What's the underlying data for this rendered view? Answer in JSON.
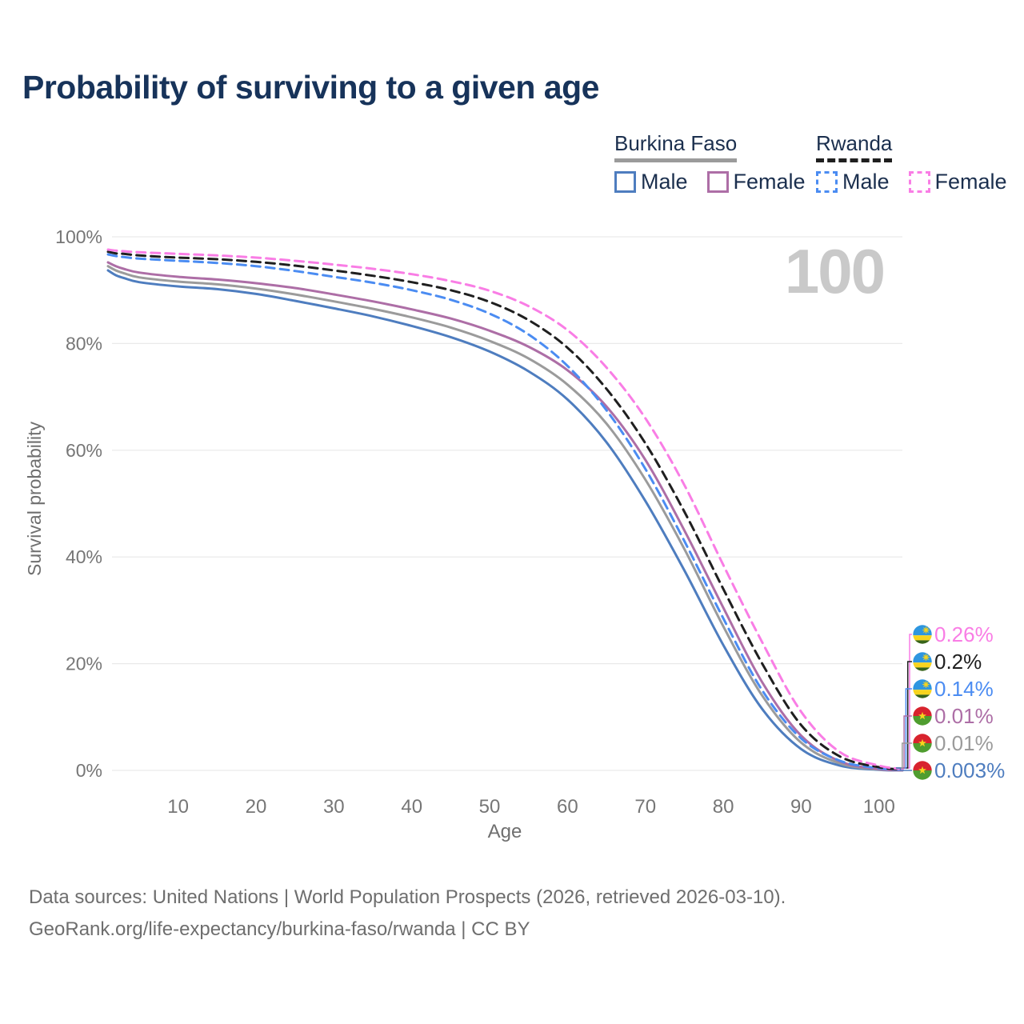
{
  "title": "Probability of surviving to a given age",
  "watermark": "100",
  "legend": {
    "groups": [
      {
        "name": "Burkina Faso",
        "line_style": "solid",
        "underline_color": "#9b9b9b",
        "items": [
          {
            "label": "Male",
            "color": "#4e7dbf",
            "dashed": false
          },
          {
            "label": "Female",
            "color": "#ad6ea6",
            "dashed": false
          }
        ]
      },
      {
        "name": "Rwanda",
        "line_style": "dashed",
        "underline_color": "#1f1f1f",
        "items": [
          {
            "label": "Male",
            "color": "#4b8cf2",
            "dashed": true
          },
          {
            "label": "Female",
            "color": "#f97de5",
            "dashed": true
          }
        ]
      }
    ]
  },
  "end_labels": [
    {
      "value": "0.26%",
      "color": "#f97de5",
      "flag": "rwanda"
    },
    {
      "value": "0.2%",
      "color": "#1f1f1f",
      "flag": "rwanda"
    },
    {
      "value": "0.14%",
      "color": "#4b8cf2",
      "flag": "rwanda"
    },
    {
      "value": "0.01%",
      "color": "#ad6ea6",
      "flag": "burkina-faso"
    },
    {
      "value": "0.01%",
      "color": "#9b9b9b",
      "flag": "burkina-faso"
    },
    {
      "value": "0.003%",
      "color": "#4e7dbf",
      "flag": "burkina-faso"
    }
  ],
  "footer": {
    "line1": "Data sources: United Nations | World Population Prospects (2026, retrieved 2026-03-10).",
    "line2": "GeoRank.org/life-expectancy/burkina-faso/rwanda | CC BY"
  },
  "chart_data": {
    "type": "line",
    "title": "Probability of surviving to a given age",
    "xlabel": "Age",
    "ylabel": "Survival probability",
    "xlim": [
      1,
      103
    ],
    "ylim": [
      0,
      100
    ],
    "grid": "horizontal",
    "legend_position": "top-right",
    "x_ticks": [
      {
        "label": "10",
        "value": 10
      },
      {
        "label": "20",
        "value": 20
      },
      {
        "label": "30",
        "value": 30
      },
      {
        "label": "40",
        "value": 40
      },
      {
        "label": "50",
        "value": 50
      },
      {
        "label": "60",
        "value": 60
      },
      {
        "label": "70",
        "value": 70
      },
      {
        "label": "80",
        "value": 80
      },
      {
        "label": "90",
        "value": 90
      },
      {
        "label": "100",
        "value": 100
      }
    ],
    "y_ticks": [
      {
        "label": "0%",
        "value": 0
      },
      {
        "label": "20%",
        "value": 20
      },
      {
        "label": "40%",
        "value": 40
      },
      {
        "label": "60%",
        "value": 60
      },
      {
        "label": "80%",
        "value": 80
      },
      {
        "label": "100%",
        "value": 100
      }
    ],
    "unit": "% survival probability",
    "series": [
      {
        "id": "burkina-faso-male",
        "name": "Burkina Faso Male",
        "color": "#4e7dbf",
        "dashed": false,
        "end_value_label": "0.003%",
        "points": [
          [
            1,
            93.7
          ],
          [
            2,
            92.8
          ],
          [
            3,
            92.3
          ],
          [
            5,
            91.5
          ],
          [
            10,
            90.7
          ],
          [
            15,
            90.2
          ],
          [
            20,
            89.3
          ],
          [
            25,
            88.0
          ],
          [
            30,
            86.6
          ],
          [
            35,
            85.1
          ],
          [
            40,
            83.3
          ],
          [
            45,
            81.2
          ],
          [
            50,
            78.5
          ],
          [
            55,
            74.8
          ],
          [
            60,
            69.5
          ],
          [
            65,
            61.5
          ],
          [
            70,
            50.5
          ],
          [
            75,
            37.5
          ],
          [
            80,
            23.5
          ],
          [
            85,
            11.5
          ],
          [
            90,
            4.0
          ],
          [
            95,
            0.9
          ],
          [
            100,
            0.12
          ],
          [
            103,
            0.003
          ]
        ]
      },
      {
        "id": "burkina-faso-total",
        "name": "Burkina Faso (both sexes)",
        "color": "#9b9b9b",
        "dashed": false,
        "end_value_label": "0.01%",
        "points": [
          [
            1,
            94.5
          ],
          [
            2,
            93.7
          ],
          [
            3,
            93.2
          ],
          [
            5,
            92.4
          ],
          [
            10,
            91.6
          ],
          [
            15,
            91.1
          ],
          [
            20,
            90.3
          ],
          [
            25,
            89.2
          ],
          [
            30,
            87.9
          ],
          [
            35,
            86.5
          ],
          [
            40,
            84.9
          ],
          [
            45,
            83.0
          ],
          [
            50,
            80.5
          ],
          [
            55,
            77.2
          ],
          [
            60,
            72.3
          ],
          [
            65,
            65.0
          ],
          [
            70,
            54.5
          ],
          [
            75,
            41.5
          ],
          [
            80,
            27.0
          ],
          [
            85,
            14.0
          ],
          [
            90,
            5.2
          ],
          [
            95,
            1.3
          ],
          [
            100,
            0.18
          ],
          [
            103,
            0.01
          ]
        ]
      },
      {
        "id": "burkina-faso-female",
        "name": "Burkina Faso Female",
        "color": "#ad6ea6",
        "dashed": false,
        "end_value_label": "0.01%",
        "points": [
          [
            1,
            95.2
          ],
          [
            2,
            94.5
          ],
          [
            3,
            94.0
          ],
          [
            5,
            93.3
          ],
          [
            10,
            92.5
          ],
          [
            15,
            92.0
          ],
          [
            20,
            91.3
          ],
          [
            25,
            90.4
          ],
          [
            30,
            89.2
          ],
          [
            35,
            87.9
          ],
          [
            40,
            86.4
          ],
          [
            45,
            84.7
          ],
          [
            50,
            82.4
          ],
          [
            55,
            79.4
          ],
          [
            60,
            75.0
          ],
          [
            65,
            68.2
          ],
          [
            70,
            58.2
          ],
          [
            75,
            45.0
          ],
          [
            80,
            30.5
          ],
          [
            85,
            16.5
          ],
          [
            90,
            6.5
          ],
          [
            95,
            1.7
          ],
          [
            100,
            0.25
          ],
          [
            103,
            0.01
          ]
        ]
      },
      {
        "id": "rwanda-male",
        "name": "Rwanda Male",
        "color": "#4b8cf2",
        "dashed": true,
        "end_value_label": "0.14%",
        "points": [
          [
            1,
            96.7
          ],
          [
            2,
            96.4
          ],
          [
            3,
            96.2
          ],
          [
            5,
            95.9
          ],
          [
            10,
            95.5
          ],
          [
            15,
            95.1
          ],
          [
            20,
            94.5
          ],
          [
            25,
            93.6
          ],
          [
            30,
            92.5
          ],
          [
            35,
            91.4
          ],
          [
            40,
            90.0
          ],
          [
            45,
            88.2
          ],
          [
            50,
            85.6
          ],
          [
            55,
            81.7
          ],
          [
            60,
            75.8
          ],
          [
            65,
            67.5
          ],
          [
            70,
            56.5
          ],
          [
            75,
            43.0
          ],
          [
            80,
            28.5
          ],
          [
            85,
            15.0
          ],
          [
            90,
            6.0
          ],
          [
            95,
            1.8
          ],
          [
            100,
            0.4
          ],
          [
            103,
            0.14
          ]
        ]
      },
      {
        "id": "rwanda-total",
        "name": "Rwanda (both sexes)",
        "color": "#1f1f1f",
        "dashed": true,
        "end_value_label": "0.2%",
        "points": [
          [
            1,
            97.2
          ],
          [
            2,
            96.9
          ],
          [
            3,
            96.8
          ],
          [
            5,
            96.5
          ],
          [
            10,
            96.1
          ],
          [
            15,
            95.8
          ],
          [
            20,
            95.3
          ],
          [
            25,
            94.6
          ],
          [
            30,
            93.7
          ],
          [
            35,
            92.7
          ],
          [
            40,
            91.5
          ],
          [
            45,
            90.0
          ],
          [
            50,
            87.8
          ],
          [
            55,
            84.4
          ],
          [
            60,
            79.2
          ],
          [
            65,
            71.5
          ],
          [
            70,
            61.3
          ],
          [
            75,
            48.5
          ],
          [
            80,
            34.0
          ],
          [
            85,
            20.0
          ],
          [
            90,
            8.5
          ],
          [
            95,
            2.6
          ],
          [
            100,
            0.6
          ],
          [
            103,
            0.2
          ]
        ]
      },
      {
        "id": "rwanda-female",
        "name": "Rwanda Female",
        "color": "#f97de5",
        "dashed": true,
        "end_value_label": "0.26%",
        "points": [
          [
            1,
            97.6
          ],
          [
            2,
            97.4
          ],
          [
            3,
            97.3
          ],
          [
            5,
            97.1
          ],
          [
            10,
            96.8
          ],
          [
            15,
            96.5
          ],
          [
            20,
            96.1
          ],
          [
            25,
            95.5
          ],
          [
            30,
            94.8
          ],
          [
            35,
            94.0
          ],
          [
            40,
            93.0
          ],
          [
            45,
            91.7
          ],
          [
            50,
            89.9
          ],
          [
            55,
            87.0
          ],
          [
            60,
            82.5
          ],
          [
            65,
            75.5
          ],
          [
            70,
            66.0
          ],
          [
            75,
            53.5
          ],
          [
            80,
            38.5
          ],
          [
            85,
            24.0
          ],
          [
            90,
            11.0
          ],
          [
            95,
            3.4
          ],
          [
            100,
            0.9
          ],
          [
            103,
            0.26
          ]
        ]
      }
    ]
  }
}
